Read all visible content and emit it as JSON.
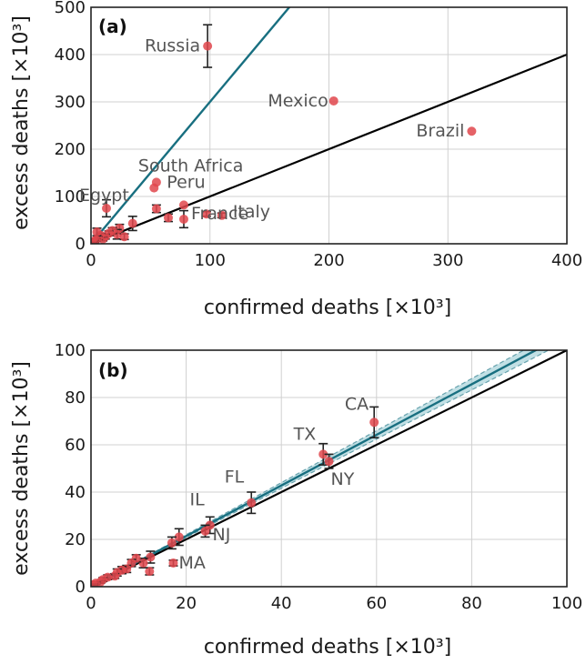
{
  "colors": {
    "point": "#e0474c",
    "teal": "#186f80",
    "band": "#8fc6cf",
    "black": "#000000",
    "grid": "#d0d0d0",
    "errorbar": "#222222"
  },
  "chart_data": [
    {
      "type": "scatter",
      "panel_label": "(a)",
      "xlabel": "confirmed deaths [×10³]",
      "ylabel": "excess deaths [×10³]",
      "xlim": [
        0,
        400
      ],
      "ylim": [
        0,
        500
      ],
      "xticks": [
        0,
        100,
        200,
        300,
        400
      ],
      "yticks": [
        0,
        100,
        200,
        300,
        400,
        500
      ],
      "grid": true,
      "reference_line": {
        "name": "y = x",
        "slope": 1
      },
      "fit_line": {
        "name": "fit",
        "slope": 3.0
      },
      "points": [
        {
          "x": 98,
          "y": 418,
          "err": 45,
          "label": "Russia"
        },
        {
          "x": 204,
          "y": 302,
          "err": 0,
          "label": "Mexico"
        },
        {
          "x": 320,
          "y": 238,
          "err": 0,
          "label": "Brazil"
        },
        {
          "x": 55,
          "y": 130,
          "err": 0,
          "label": "South Africa"
        },
        {
          "x": 13,
          "y": 75,
          "err": 18,
          "label": "Egypt"
        },
        {
          "x": 53,
          "y": 118,
          "err": 0,
          "label": "Peru"
        },
        {
          "x": 110,
          "y": 60,
          "err": 5,
          "label": "Italy"
        },
        {
          "x": 78,
          "y": 52,
          "err": 18,
          "label": "France"
        },
        {
          "x": 78,
          "y": 82,
          "err": 0,
          "label": ""
        },
        {
          "x": 97,
          "y": 63,
          "err": 5,
          "label": ""
        },
        {
          "x": 65,
          "y": 55,
          "err": 8,
          "label": ""
        },
        {
          "x": 55,
          "y": 74,
          "err": 8,
          "label": ""
        },
        {
          "x": 35,
          "y": 43,
          "err": 15,
          "label": ""
        },
        {
          "x": 24,
          "y": 33,
          "err": 8,
          "label": ""
        },
        {
          "x": 22,
          "y": 20,
          "err": 10,
          "label": ""
        },
        {
          "x": 18,
          "y": 28,
          "err": 6,
          "label": ""
        },
        {
          "x": 15,
          "y": 22,
          "err": 5,
          "label": ""
        },
        {
          "x": 12,
          "y": 15,
          "err": 5,
          "label": ""
        },
        {
          "x": 10,
          "y": 10,
          "err": 4,
          "label": ""
        },
        {
          "x": 8,
          "y": 18,
          "err": 4,
          "label": ""
        },
        {
          "x": 6,
          "y": 12,
          "err": 3,
          "label": ""
        },
        {
          "x": 5,
          "y": 25,
          "err": 8,
          "label": ""
        },
        {
          "x": 4,
          "y": 8,
          "err": 3,
          "label": ""
        },
        {
          "x": 3,
          "y": 5,
          "err": 2,
          "label": ""
        },
        {
          "x": 2,
          "y": 3,
          "err": 2,
          "label": ""
        },
        {
          "x": 1,
          "y": 2,
          "err": 1,
          "label": ""
        },
        {
          "x": 28,
          "y": 15,
          "err": 6,
          "label": ""
        }
      ]
    },
    {
      "type": "scatter",
      "panel_label": "(b)",
      "xlabel": "confirmed deaths [×10³]",
      "ylabel": "excess deaths [×10³]",
      "xlim": [
        0,
        100
      ],
      "ylim": [
        0,
        100
      ],
      "xticks": [
        0,
        20,
        40,
        60,
        80,
        100
      ],
      "yticks": [
        0,
        20,
        40,
        60,
        80,
        100
      ],
      "grid": true,
      "reference_line": {
        "name": "y = x",
        "slope": 1
      },
      "fit_line": {
        "name": "fit",
        "slope": 1.07,
        "band_low": 1.04,
        "band_high": 1.1
      },
      "points": [
        {
          "x": 59.5,
          "y": 69.5,
          "err": 6.5,
          "label": "CA"
        },
        {
          "x": 48.8,
          "y": 56,
          "err": 4.5,
          "label": "TX"
        },
        {
          "x": 50,
          "y": 53,
          "err": 3,
          "label": "NY"
        },
        {
          "x": 33.7,
          "y": 35.5,
          "err": 4.5,
          "label": "FL"
        },
        {
          "x": 25,
          "y": 26,
          "err": 3.5,
          "label": "IL"
        },
        {
          "x": 24,
          "y": 23.5,
          "err": 2.5,
          "label": "NJ"
        },
        {
          "x": 17.3,
          "y": 10,
          "err": 1.2,
          "label": "MA"
        },
        {
          "x": 18.5,
          "y": 21,
          "err": 3.5,
          "label": ""
        },
        {
          "x": 17,
          "y": 18.5,
          "err": 2.5,
          "label": ""
        },
        {
          "x": 12.5,
          "y": 12.5,
          "err": 2.5,
          "label": ""
        },
        {
          "x": 12.3,
          "y": 6.5,
          "err": 1.5,
          "label": ""
        },
        {
          "x": 11,
          "y": 10,
          "err": 2,
          "label": ""
        },
        {
          "x": 9.5,
          "y": 12,
          "err": 1.5,
          "label": ""
        },
        {
          "x": 8.5,
          "y": 10,
          "err": 1.5,
          "label": ""
        },
        {
          "x": 7.5,
          "y": 7.5,
          "err": 1.5,
          "label": ""
        },
        {
          "x": 6.5,
          "y": 7,
          "err": 1.5,
          "label": ""
        },
        {
          "x": 5.5,
          "y": 6,
          "err": 1.5,
          "label": ""
        },
        {
          "x": 5,
          "y": 4.5,
          "err": 1,
          "label": ""
        },
        {
          "x": 3.5,
          "y": 4,
          "err": 1,
          "label": ""
        },
        {
          "x": 2.5,
          "y": 3,
          "err": 0.8,
          "label": ""
        },
        {
          "x": 2,
          "y": 2,
          "err": 0.5,
          "label": ""
        },
        {
          "x": 1,
          "y": 1.5,
          "err": 0.5,
          "label": ""
        },
        {
          "x": 0.5,
          "y": 0.8,
          "err": 0.3,
          "label": ""
        }
      ]
    }
  ]
}
